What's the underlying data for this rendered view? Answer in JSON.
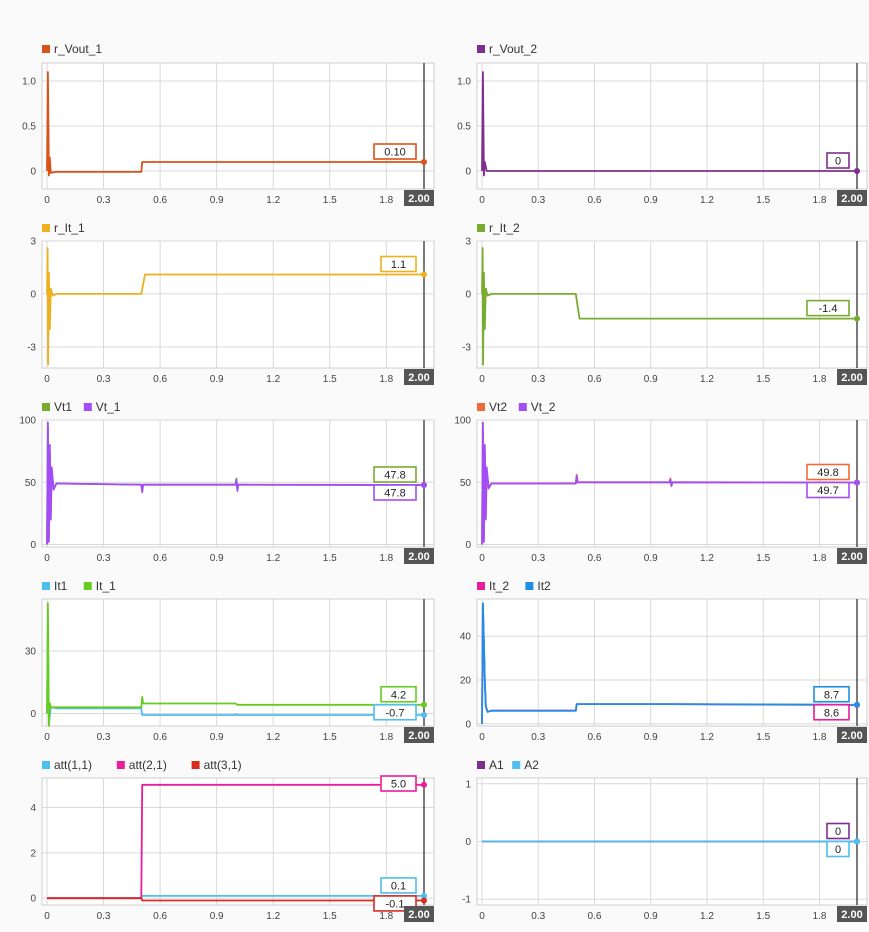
{
  "x_ticks": [
    "0",
    "0.3",
    "0.6",
    "0.9",
    "1.2",
    "1.5",
    "1.8"
  ],
  "cursor_label": "2.00",
  "chart_data": [
    {
      "type": "line",
      "xlim": [
        0,
        2
      ],
      "ylim": [
        -0.2,
        1.2
      ],
      "y_ticks": [
        {
          "v": 1,
          "t": "1.0"
        },
        {
          "v": 0.5,
          "t": "0.5"
        },
        {
          "v": 0,
          "t": "0"
        }
      ],
      "series": [
        {
          "name": "r_Vout_1",
          "color": "#d95319",
          "value_label": "0.10",
          "points": [
            [
              0,
              0
            ],
            [
              0.005,
              1.1
            ],
            [
              0.01,
              -0.05
            ],
            [
              0.015,
              0.15
            ],
            [
              0.02,
              -0.02
            ],
            [
              0.05,
              -0.01
            ],
            [
              0.5,
              -0.01
            ],
            [
              0.505,
              0.1
            ],
            [
              2,
              0.1
            ]
          ]
        }
      ]
    },
    {
      "type": "line",
      "xlim": [
        0,
        2
      ],
      "ylim": [
        -0.2,
        1.2
      ],
      "y_ticks": [
        {
          "v": 1,
          "t": "1.0"
        },
        {
          "v": 0.5,
          "t": "0.5"
        },
        {
          "v": 0,
          "t": "0"
        }
      ],
      "series": [
        {
          "name": "r_Vout_2",
          "color": "#7e2f8e",
          "value_label": "0",
          "points": [
            [
              0,
              0
            ],
            [
              0.005,
              1.1
            ],
            [
              0.01,
              -0.05
            ],
            [
              0.015,
              0.1
            ],
            [
              0.025,
              0
            ],
            [
              2,
              0
            ]
          ]
        }
      ]
    },
    {
      "type": "line",
      "xlim": [
        0,
        2
      ],
      "ylim": [
        -4.2,
        3
      ],
      "y_ticks": [
        {
          "v": 3,
          "t": "3"
        },
        {
          "v": 0,
          "t": "0"
        },
        {
          "v": -3,
          "t": "-3"
        }
      ],
      "series": [
        {
          "name": "r_It_1",
          "color": "#edb120",
          "value_label": "1.1",
          "points": [
            [
              0,
              0
            ],
            [
              0.003,
              2.6
            ],
            [
              0.006,
              -4
            ],
            [
              0.01,
              1.2
            ],
            [
              0.015,
              -2
            ],
            [
              0.02,
              0.3
            ],
            [
              0.03,
              -0.1
            ],
            [
              0.05,
              0
            ],
            [
              0.5,
              0
            ],
            [
              0.52,
              1.1
            ],
            [
              2,
              1.1
            ]
          ]
        }
      ]
    },
    {
      "type": "line",
      "xlim": [
        0,
        2
      ],
      "ylim": [
        -4.2,
        3
      ],
      "y_ticks": [
        {
          "v": 3,
          "t": "3"
        },
        {
          "v": 0,
          "t": "0"
        },
        {
          "v": -3,
          "t": "-3"
        }
      ],
      "series": [
        {
          "name": "r_It_2",
          "color": "#77ac30",
          "value_label": "-1.4",
          "points": [
            [
              0,
              0
            ],
            [
              0.003,
              2.6
            ],
            [
              0.006,
              -4
            ],
            [
              0.01,
              1.2
            ],
            [
              0.015,
              -2
            ],
            [
              0.02,
              0.3
            ],
            [
              0.03,
              -0.1
            ],
            [
              0.05,
              0
            ],
            [
              0.5,
              0
            ],
            [
              0.52,
              -1.4
            ],
            [
              2,
              -1.4
            ]
          ]
        }
      ]
    },
    {
      "type": "line",
      "xlim": [
        0,
        2
      ],
      "ylim": [
        -2,
        100
      ],
      "y_ticks": [
        {
          "v": 100,
          "t": "100"
        },
        {
          "v": 50,
          "t": "50"
        },
        {
          "v": 0,
          "t": "0"
        }
      ],
      "series": [
        {
          "name": "Vt1",
          "color": "#77ac30",
          "value_label": "47.8",
          "points": [
            [
              0,
              0
            ],
            [
              0.005,
              95
            ],
            [
              0.01,
              5
            ],
            [
              0.015,
              75
            ],
            [
              0.02,
              25
            ],
            [
              0.025,
              60
            ],
            [
              0.035,
              45
            ],
            [
              0.05,
              49
            ],
            [
              0.5,
              48
            ],
            [
              0.505,
              43
            ],
            [
              0.51,
              48
            ],
            [
              1,
              48
            ],
            [
              1.005,
              53
            ],
            [
              1.01,
              44
            ],
            [
              1.015,
              48
            ],
            [
              2,
              47.8
            ]
          ]
        },
        {
          "name": "Vt_1",
          "color": "#a34df7",
          "value_label": "47.8",
          "points": [
            [
              0,
              0
            ],
            [
              0.005,
              98
            ],
            [
              0.01,
              2
            ],
            [
              0.015,
              80
            ],
            [
              0.02,
              20
            ],
            [
              0.025,
              62
            ],
            [
              0.035,
              44
            ],
            [
              0.05,
              49
            ],
            [
              0.5,
              48
            ],
            [
              0.505,
              42
            ],
            [
              0.51,
              48
            ],
            [
              1,
              48
            ],
            [
              1.005,
              52
            ],
            [
              1.01,
              43
            ],
            [
              1.015,
              48
            ],
            [
              2,
              47.8
            ]
          ]
        }
      ]
    },
    {
      "type": "line",
      "xlim": [
        0,
        2
      ],
      "ylim": [
        -2,
        100
      ],
      "y_ticks": [
        {
          "v": 100,
          "t": "100"
        },
        {
          "v": 50,
          "t": "50"
        },
        {
          "v": 0,
          "t": "0"
        }
      ],
      "series": [
        {
          "name": "Vt2",
          "color": "#f26a36",
          "value_label": "49.8",
          "points": [
            [
              0,
              0
            ],
            [
              0.005,
              95
            ],
            [
              0.01,
              5
            ],
            [
              0.015,
              75
            ],
            [
              0.02,
              25
            ],
            [
              0.025,
              60
            ],
            [
              0.035,
              46
            ],
            [
              0.05,
              49
            ],
            [
              0.5,
              49
            ],
            [
              0.505,
              56
            ],
            [
              0.51,
              50
            ],
            [
              1,
              50
            ],
            [
              1.005,
              53
            ],
            [
              1.01,
              47
            ],
            [
              1.015,
              50
            ],
            [
              2,
              49.8
            ]
          ]
        },
        {
          "name": "Vt_2",
          "color": "#a34df7",
          "value_label": "49.7",
          "points": [
            [
              0,
              0
            ],
            [
              0.005,
              98
            ],
            [
              0.01,
              2
            ],
            [
              0.015,
              80
            ],
            [
              0.02,
              20
            ],
            [
              0.025,
              62
            ],
            [
              0.035,
              45
            ],
            [
              0.05,
              49
            ],
            [
              0.5,
              49
            ],
            [
              0.505,
              55
            ],
            [
              0.51,
              50
            ],
            [
              1,
              50
            ],
            [
              1.005,
              52
            ],
            [
              1.01,
              47
            ],
            [
              1.015,
              50
            ],
            [
              2,
              49.7
            ]
          ]
        }
      ]
    },
    {
      "type": "line",
      "xlim": [
        0,
        2
      ],
      "ylim": [
        -6,
        55
      ],
      "y_ticks": [
        {
          "v": 30,
          "t": "30"
        },
        {
          "v": 0,
          "t": "0"
        }
      ],
      "series": [
        {
          "name": "It1",
          "color": "#4dbeee",
          "value_label": "-0.7",
          "points": [
            [
              0,
              0
            ],
            [
              0.005,
              40
            ],
            [
              0.01,
              -5
            ],
            [
              0.02,
              3
            ],
            [
              0.05,
              2.5
            ],
            [
              0.5,
              2.5
            ],
            [
              0.505,
              -0.7
            ],
            [
              1,
              -0.7
            ],
            [
              1.005,
              -0.3
            ],
            [
              1.01,
              -0.7
            ],
            [
              2,
              -0.7
            ]
          ]
        },
        {
          "name": "It_1",
          "color": "#66cc22",
          "value_label": "4.2",
          "points": [
            [
              0,
              0
            ],
            [
              0.005,
              53
            ],
            [
              0.01,
              -6
            ],
            [
              0.015,
              5
            ],
            [
              0.02,
              3
            ],
            [
              0.05,
              3
            ],
            [
              0.5,
              3
            ],
            [
              0.505,
              8
            ],
            [
              0.51,
              4.8
            ],
            [
              1,
              4.8
            ],
            [
              1.01,
              4.2
            ],
            [
              2,
              4.2
            ]
          ]
        }
      ]
    },
    {
      "type": "line",
      "xlim": [
        0,
        2
      ],
      "ylim": [
        -1,
        57
      ],
      "y_ticks": [
        {
          "v": 40,
          "t": "40"
        },
        {
          "v": 20,
          "t": "20"
        },
        {
          "v": 0,
          "t": "0"
        }
      ],
      "series": [
        {
          "name": "It_2",
          "color": "#e81d9c",
          "value_label": "8.6",
          "points": [
            [
              0,
              0
            ],
            [
              0.005,
              55
            ],
            [
              0.015,
              20
            ],
            [
              0.02,
              8
            ],
            [
              0.03,
              5.5
            ],
            [
              0.05,
              6
            ],
            [
              0.5,
              6
            ],
            [
              0.505,
              9
            ],
            [
              1,
              9
            ],
            [
              2,
              8.6
            ]
          ]
        },
        {
          "name": "It2",
          "color": "#1f8fe5",
          "value_label": "8.7",
          "points": [
            [
              0,
              0
            ],
            [
              0.005,
              55
            ],
            [
              0.015,
              20
            ],
            [
              0.02,
              8
            ],
            [
              0.03,
              5.5
            ],
            [
              0.05,
              6
            ],
            [
              0.5,
              6
            ],
            [
              0.505,
              9
            ],
            [
              1,
              9
            ],
            [
              2,
              8.7
            ]
          ]
        }
      ]
    },
    {
      "type": "line",
      "xlim": [
        0,
        2
      ],
      "ylim": [
        -0.3,
        5.3
      ],
      "y_ticks": [
        {
          "v": 4,
          "t": "4"
        },
        {
          "v": 2,
          "t": "2"
        },
        {
          "v": 0,
          "t": "0"
        }
      ],
      "series": [
        {
          "name": "att(1,1)",
          "color": "#4dbeee",
          "value_label": "0.1",
          "points": [
            [
              0,
              0
            ],
            [
              0.5,
              0
            ],
            [
              0.505,
              0.1
            ],
            [
              2,
              0.1
            ]
          ]
        },
        {
          "name": "att(2,1)",
          "color": "#e81d9c",
          "value_label": "5.0",
          "points": [
            [
              0,
              0
            ],
            [
              0.5,
              0
            ],
            [
              0.505,
              5
            ],
            [
              2,
              5
            ]
          ]
        },
        {
          "name": "att(3,1)",
          "color": "#d62d20",
          "value_label": "-0.1",
          "points": [
            [
              0,
              0
            ],
            [
              0.5,
              0
            ],
            [
              0.505,
              -0.1
            ],
            [
              2,
              -0.1
            ]
          ]
        }
      ]
    },
    {
      "type": "line",
      "xlim": [
        0,
        2
      ],
      "ylim": [
        -1.1,
        1.1
      ],
      "y_ticks": [
        {
          "v": 1,
          "t": "1"
        },
        {
          "v": 0,
          "t": "0"
        },
        {
          "v": -1,
          "t": "-1"
        }
      ],
      "series": [
        {
          "name": "A1",
          "color": "#7e2f8e",
          "value_label": "0",
          "points": [
            [
              0,
              0
            ],
            [
              2,
              0
            ]
          ]
        },
        {
          "name": "A2",
          "color": "#4dbeee",
          "value_label": "0",
          "points": [
            [
              0,
              0
            ],
            [
              2,
              0
            ]
          ]
        }
      ]
    }
  ]
}
